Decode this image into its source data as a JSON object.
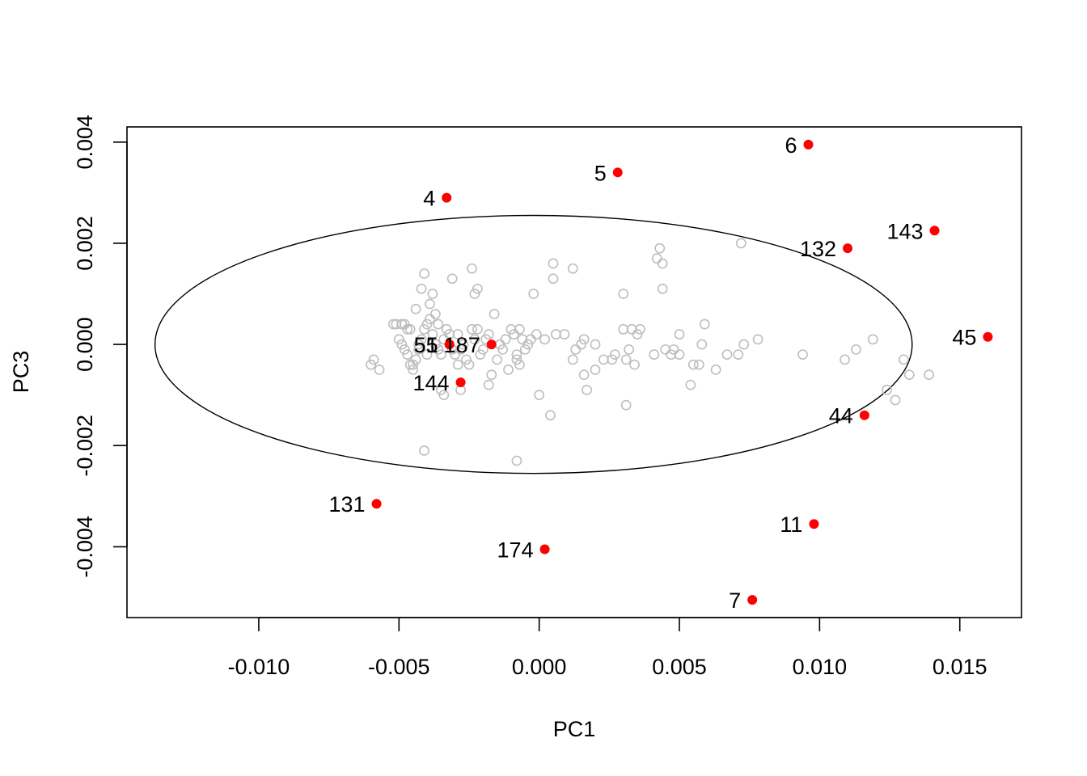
{
  "chart_data": {
    "type": "scatter",
    "title": "",
    "xlabel": "PC1",
    "ylabel": "PC3",
    "xlim": [
      -0.0147,
      0.0172
    ],
    "ylim": [
      -0.0054,
      0.0043
    ],
    "x_ticks": [
      {
        "value": -0.01,
        "label": "-0.010"
      },
      {
        "value": -0.005,
        "label": "-0.005"
      },
      {
        "value": 0.0,
        "label": "0.000"
      },
      {
        "value": 0.005,
        "label": "0.005"
      },
      {
        "value": 0.01,
        "label": "0.010"
      },
      {
        "value": 0.015,
        "label": "0.015"
      }
    ],
    "y_ticks": [
      {
        "value": -0.004,
        "label": "-0.004"
      },
      {
        "value": -0.002,
        "label": "-0.002"
      },
      {
        "value": 0.0,
        "label": "0.000"
      },
      {
        "value": 0.002,
        "label": "0.002"
      },
      {
        "value": 0.004,
        "label": "0.004"
      }
    ],
    "grid": false,
    "legend": "none",
    "colors": {
      "normal": "#bebebe",
      "outlier": "#ff0000",
      "ellipse": "#000000"
    },
    "ellipse": {
      "center": [
        -0.0002,
        0.0
      ],
      "semi_axis_x": 0.0135,
      "semi_axis_y": 0.00255
    },
    "outliers": [
      {
        "label": "4",
        "x": -0.0033,
        "y": 0.0029
      },
      {
        "label": "5",
        "x": 0.0028,
        "y": 0.0034
      },
      {
        "label": "6",
        "x": 0.0096,
        "y": 0.00395
      },
      {
        "label": "143",
        "x": 0.0141,
        "y": 0.00225
      },
      {
        "label": "132",
        "x": 0.011,
        "y": 0.0019
      },
      {
        "label": "45",
        "x": 0.016,
        "y": 0.00015
      },
      {
        "label": "55",
        "x": -0.0032,
        "y": 0.0
      },
      {
        "label": "51",
        "x": -0.0032,
        "y": 0.0
      },
      {
        "label": "187",
        "x": -0.0017,
        "y": 0.0
      },
      {
        "label": "144",
        "x": -0.0028,
        "y": -0.00075
      },
      {
        "label": "44",
        "x": 0.0116,
        "y": -0.0014
      },
      {
        "label": "131",
        "x": -0.0058,
        "y": -0.00315
      },
      {
        "label": "174",
        "x": 0.0002,
        "y": -0.00405
      },
      {
        "label": "11",
        "x": 0.0098,
        "y": -0.00355
      },
      {
        "label": "7",
        "x": 0.0076,
        "y": -0.00505
      }
    ],
    "points": [
      [
        -0.0051,
        0.0004
      ],
      [
        -0.0049,
        0.0004
      ],
      [
        -0.0048,
        0.0004
      ],
      [
        -0.0047,
        0.0003
      ],
      [
        -0.0046,
        0.0003
      ],
      [
        -0.005,
        0.0001
      ],
      [
        -0.0049,
        0.0
      ],
      [
        -0.0048,
        -0.0001
      ],
      [
        -0.0047,
        -0.0002
      ],
      [
        -0.0046,
        -0.0004
      ],
      [
        -0.0045,
        -0.0004
      ],
      [
        -0.0044,
        -0.0003
      ],
      [
        -0.0043,
        -0.0001
      ],
      [
        -0.0042,
        0.0001
      ],
      [
        -0.0041,
        0.0003
      ],
      [
        -0.004,
        0.0004
      ],
      [
        -0.0039,
        0.0005
      ],
      [
        -0.0038,
        0.0002
      ],
      [
        -0.0037,
        0.0
      ],
      [
        -0.0036,
        -0.0001
      ],
      [
        -0.0035,
        -0.0002
      ],
      [
        -0.0034,
        0.0001
      ],
      [
        -0.0033,
        0.0003
      ],
      [
        -0.0032,
        0.0002
      ],
      [
        -0.0031,
        -0.0001
      ],
      [
        -0.003,
        -0.0002
      ],
      [
        -0.0029,
        0.0002
      ],
      [
        -0.0028,
        -0.0001
      ],
      [
        -0.0027,
        0.0
      ],
      [
        -0.0026,
        -0.0003
      ],
      [
        -0.0025,
        -0.0004
      ],
      [
        -0.0024,
        0.0003
      ],
      [
        -0.0023,
        0.0001
      ],
      [
        -0.0022,
        0.0003
      ],
      [
        -0.0021,
        -0.0002
      ],
      [
        -0.002,
        -0.0001
      ],
      [
        -0.0019,
        0.0001
      ],
      [
        -0.0018,
        0.0002
      ],
      [
        -0.0017,
        -0.0006
      ],
      [
        -0.0016,
        0.0006
      ],
      [
        -0.0015,
        -0.0003
      ],
      [
        -0.0014,
        0.0
      ],
      [
        -0.0013,
        -0.0001
      ],
      [
        -0.0012,
        0.0001
      ],
      [
        -0.0011,
        -0.0005
      ],
      [
        -0.001,
        0.0003
      ],
      [
        -0.0009,
        0.0002
      ],
      [
        -0.0008,
        -0.0002
      ],
      [
        -0.0007,
        -0.0004
      ],
      [
        -0.0006,
        0.0001
      ],
      [
        -0.0005,
        -0.0001
      ],
      [
        -0.0004,
        0.0
      ],
      [
        -0.006,
        -0.0004
      ],
      [
        -0.0059,
        -0.0003
      ],
      [
        -0.0057,
        -0.0005
      ],
      [
        -0.0044,
        0.0007
      ],
      [
        -0.0042,
        0.0011
      ],
      [
        -0.0041,
        0.0014
      ],
      [
        -0.0039,
        0.0008
      ],
      [
        -0.0038,
        0.001
      ],
      [
        -0.0037,
        0.0006
      ],
      [
        -0.0035,
        -0.0009
      ],
      [
        -0.0034,
        -0.001
      ],
      [
        -0.0031,
        0.0013
      ],
      [
        -0.0024,
        0.0015
      ],
      [
        -0.0022,
        0.0011
      ],
      [
        -0.0023,
        0.001
      ],
      [
        -0.0028,
        -0.0009
      ],
      [
        -0.0018,
        -0.0008
      ],
      [
        -0.0041,
        -0.0021
      ],
      [
        -0.0008,
        -0.0023
      ],
      [
        -0.0002,
        0.001
      ],
      [
        0.0005,
        0.0016
      ],
      [
        0.0005,
        0.0013
      ],
      [
        0.0012,
        0.0015
      ],
      [
        -0.0001,
        0.0002
      ],
      [
        0.0006,
        0.0002
      ],
      [
        0.0009,
        0.0002
      ],
      [
        0.0013,
        -0.0001
      ],
      [
        0.0016,
        0.0001
      ],
      [
        0.0012,
        -0.0003
      ],
      [
        0.0016,
        -0.0006
      ],
      [
        0.0017,
        -0.0009
      ],
      [
        0.002,
        -0.0005
      ],
      [
        0.0023,
        -0.0003
      ],
      [
        0.0027,
        -0.0002
      ],
      [
        0.0031,
        -0.0003
      ],
      [
        0.0033,
        0.0003
      ],
      [
        0.003,
        0.0003
      ],
      [
        0.0035,
        0.0002
      ],
      [
        0.0032,
        -0.0001
      ],
      [
        0.0034,
        -0.0004
      ],
      [
        0.003,
        0.001
      ],
      [
        0.0031,
        -0.0012
      ],
      [
        0.0042,
        0.0017
      ],
      [
        0.0043,
        0.0019
      ],
      [
        0.0044,
        0.0016
      ],
      [
        0.0044,
        0.0011
      ],
      [
        0.0045,
        -0.0001
      ],
      [
        0.0047,
        -0.0002
      ],
      [
        0.0048,
        -0.0001
      ],
      [
        0.005,
        0.0002
      ],
      [
        0.005,
        -0.0002
      ],
      [
        0.0054,
        -0.0008
      ],
      [
        0.0055,
        -0.0004
      ],
      [
        0.0057,
        -0.0004
      ],
      [
        0.0058,
        0.0
      ],
      [
        0.0059,
        0.0004
      ],
      [
        0.0063,
        -0.0005
      ],
      [
        0.0067,
        -0.0002
      ],
      [
        0.0071,
        -0.0002
      ],
      [
        0.0073,
        0.0
      ],
      [
        0.0072,
        0.002
      ],
      [
        0.0078,
        0.0001
      ],
      [
        0.0094,
        -0.0002
      ],
      [
        0.0109,
        -0.0003
      ],
      [
        0.0113,
        -0.0001
      ],
      [
        0.0119,
        0.0001
      ],
      [
        0.0124,
        -0.0009
      ],
      [
        0.0127,
        -0.0011
      ],
      [
        0.013,
        -0.0003
      ],
      [
        0.0132,
        -0.0006
      ],
      [
        0.0139,
        -0.0006
      ],
      [
        0.0002,
        0.0001
      ],
      [
        -0.0003,
        0.0001
      ],
      [
        0.0004,
        -0.0014
      ],
      [
        -0.0008,
        -0.0003
      ],
      [
        -0.0007,
        0.0003
      ],
      [
        0.0,
        -0.001
      ],
      [
        0.0026,
        -0.0003
      ],
      [
        0.0015,
        0.0
      ],
      [
        0.0036,
        0.0003
      ],
      [
        0.0041,
        -0.0002
      ],
      [
        0.002,
        0.0
      ],
      [
        -0.0052,
        0.0004
      ],
      [
        -0.0045,
        -0.0005
      ],
      [
        -0.0043,
        0.0
      ],
      [
        -0.004,
        -0.0002
      ],
      [
        -0.0036,
        0.0004
      ],
      [
        -0.0029,
        -0.0004
      ]
    ]
  }
}
